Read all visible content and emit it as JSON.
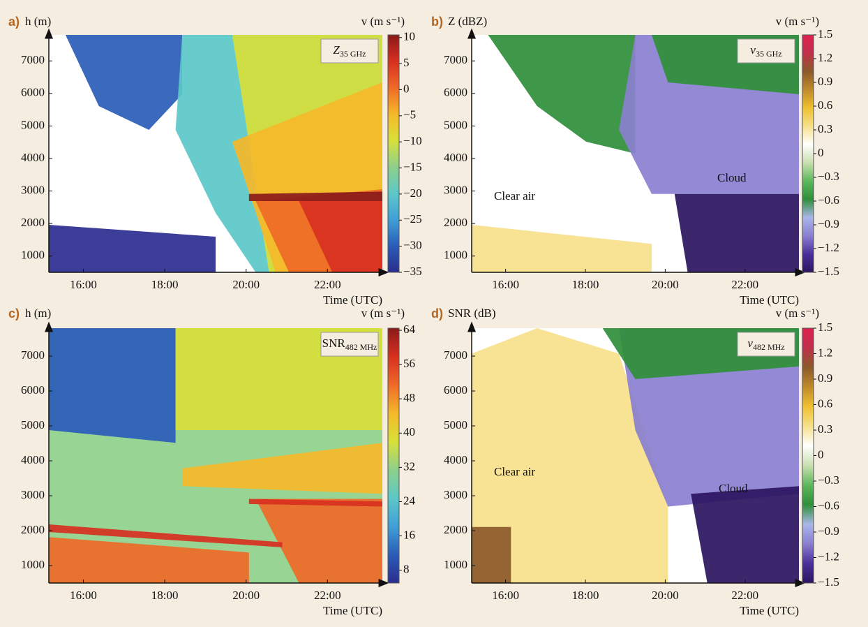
{
  "chart_data": [
    {
      "type": "heatmap",
      "panel": "a)",
      "y_label": "h (m)",
      "x_label": "Time (UTC)",
      "cbar_label": "v (m s⁻¹)",
      "inset_label": "Z",
      "inset_subscript": "35 GHz",
      "xlim": [
        15.15,
        23.35
      ],
      "xticks": [
        {
          "value": 16,
          "label": "16:00"
        },
        {
          "value": 18,
          "label": "18:00"
        },
        {
          "value": 20,
          "label": "20:00"
        },
        {
          "value": 22,
          "label": "22:00"
        }
      ],
      "ylim": [
        500,
        7800
      ],
      "yticks": [
        1000,
        2000,
        3000,
        4000,
        5000,
        6000,
        7000
      ],
      "cbar_lim": [
        -35,
        10.5
      ],
      "cbar_ticks": [
        10,
        5,
        0,
        {
          "value": -5,
          "label": "−5"
        },
        {
          "value": -10,
          "label": "−10"
        },
        {
          "value": -15,
          "label": "−15"
        },
        {
          "value": -20,
          "label": "−20"
        },
        {
          "value": -25,
          "label": "−25"
        },
        {
          "value": -30,
          "label": "−30"
        },
        {
          "value": -35,
          "label": "−35"
        }
      ],
      "colormap": [
        "#2b2d8f",
        "#2a5cb8",
        "#3fa0d8",
        "#5cc8c8",
        "#8fd08a",
        "#d8e03a",
        "#f5b82a",
        "#ef6a28",
        "#d7301f",
        "#8b1a1a"
      ]
    },
    {
      "type": "heatmap",
      "panel": "b)",
      "y_label": "Z (dBZ)",
      "x_label": "Time (UTC)",
      "cbar_label": "v (m s⁻¹)",
      "inset_label": "v",
      "inset_subscript": "35 GHz",
      "annotations": [
        "Clear air",
        "Cloud"
      ],
      "xlim": [
        15.15,
        23.35
      ],
      "xticks": [
        {
          "value": 16,
          "label": "16:00"
        },
        {
          "value": 18,
          "label": "18:00"
        },
        {
          "value": 20,
          "label": "20:00"
        },
        {
          "value": 22,
          "label": "22:00"
        }
      ],
      "ylim": [
        500,
        7800
      ],
      "yticks": [
        1000,
        2000,
        3000,
        4000,
        5000,
        6000,
        7000
      ],
      "cbar_lim": [
        -1.5,
        1.5
      ],
      "cbar_ticks": [
        1.5,
        1.2,
        0.9,
        0.6,
        0.3,
        0,
        {
          "value": -0.3,
          "label": "−0.3"
        },
        {
          "value": -0.6,
          "label": "−0.6"
        },
        {
          "value": -0.9,
          "label": "−0.9"
        },
        {
          "value": -1.2,
          "label": "−1.2"
        },
        {
          "value": -1.5,
          "label": "−1.5"
        }
      ],
      "colormap": [
        "#2b1560",
        "#4b2f9a",
        "#8a7fd0",
        "#a9b6e8",
        "#2f8f3a",
        "#5cb85c",
        "#c8e0b0",
        "#ffffff",
        "#f7e08a",
        "#f0c030",
        "#c08a2a",
        "#8b5a2a",
        "#c0304a",
        "#e02050"
      ]
    },
    {
      "type": "heatmap",
      "panel": "c)",
      "y_label": "h (m)",
      "x_label": "Time (UTC)",
      "cbar_label": "v (m s⁻¹)",
      "inset_label": "SNR",
      "inset_subscript": "482 MHz",
      "xlim": [
        15.15,
        23.35
      ],
      "xticks": [
        {
          "value": 16,
          "label": "16:00"
        },
        {
          "value": 18,
          "label": "18:00"
        },
        {
          "value": 20,
          "label": "20:00"
        },
        {
          "value": 22,
          "label": "22:00"
        }
      ],
      "ylim": [
        500,
        7800
      ],
      "yticks": [
        1000,
        2000,
        3000,
        4000,
        5000,
        6000,
        7000
      ],
      "cbar_lim": [
        5,
        64.5
      ],
      "cbar_ticks": [
        64,
        56,
        48,
        40,
        32,
        24,
        16,
        8
      ],
      "colormap": [
        "#2b2d8f",
        "#2a5cb8",
        "#3fa0d8",
        "#5cc8c8",
        "#8fd08a",
        "#d8e03a",
        "#f5b82a",
        "#ef6a28",
        "#d7301f",
        "#8b1a1a"
      ]
    },
    {
      "type": "heatmap",
      "panel": "d)",
      "y_label": "SNR (dB)",
      "x_label": "Time (UTC)",
      "cbar_label": "v (m s⁻¹)",
      "inset_label": "v",
      "inset_subscript": "482 MHz",
      "annotations": [
        "Clear air",
        "Cloud"
      ],
      "xlim": [
        15.15,
        23.35
      ],
      "xticks": [
        {
          "value": 16,
          "label": "16:00"
        },
        {
          "value": 18,
          "label": "18:00"
        },
        {
          "value": 20,
          "label": "20:00"
        },
        {
          "value": 22,
          "label": "22:00"
        }
      ],
      "ylim": [
        500,
        7800
      ],
      "yticks": [
        1000,
        2000,
        3000,
        4000,
        5000,
        6000,
        7000
      ],
      "cbar_lim": [
        -1.5,
        1.5
      ],
      "cbar_ticks": [
        1.5,
        1.2,
        0.9,
        0.6,
        0.3,
        0,
        {
          "value": -0.3,
          "label": "−0.3"
        },
        {
          "value": -0.6,
          "label": "−0.6"
        },
        {
          "value": -0.9,
          "label": "−0.9"
        },
        {
          "value": -1.2,
          "label": "−1.2"
        },
        {
          "value": -1.5,
          "label": "−1.5"
        }
      ],
      "colormap": [
        "#2b1560",
        "#4b2f9a",
        "#8a7fd0",
        "#a9b6e8",
        "#2f8f3a",
        "#5cb85c",
        "#c8e0b0",
        "#ffffff",
        "#f7e08a",
        "#f0c030",
        "#c08a2a",
        "#8b5a2a",
        "#c0304a",
        "#e02050"
      ]
    }
  ]
}
